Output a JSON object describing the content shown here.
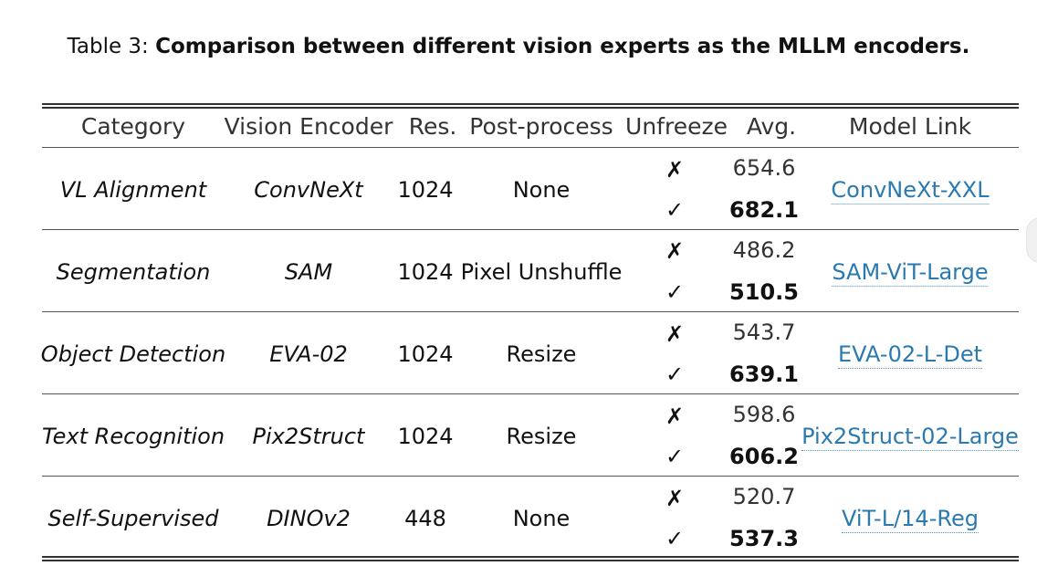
{
  "caption": {
    "prefix": "Table 3: ",
    "title": "Comparison between different vision experts as the MLLM encoders."
  },
  "headers": {
    "category": "Category",
    "encoder": "Vision Encoder",
    "res": "Res.",
    "post": "Post-process",
    "unfreeze": "Unfreeze",
    "avg": "Avg.",
    "link": "Model Link"
  },
  "rows": [
    {
      "category": "VL Alignment",
      "encoder": "ConvNeXt",
      "res": "1024",
      "post": "None",
      "frozen_mark": "✗",
      "frozen_avg": "654.6",
      "unfrozen_mark": "✓",
      "unfrozen_avg": "682.1",
      "link": "ConvNeXt-XXL"
    },
    {
      "category": "Segmentation",
      "encoder": "SAM",
      "res": "1024",
      "post": "Pixel Unshuffle",
      "frozen_mark": "✗",
      "frozen_avg": "486.2",
      "unfrozen_mark": "✓",
      "unfrozen_avg": "510.5",
      "link": "SAM-ViT-Large"
    },
    {
      "category": "Object Detection",
      "encoder": "EVA-02",
      "res": "1024",
      "post": "Resize",
      "frozen_mark": "✗",
      "frozen_avg": "543.7",
      "unfrozen_mark": "✓",
      "unfrozen_avg": "639.1",
      "link": "EVA-02-L-Det"
    },
    {
      "category": "Text Recognition",
      "encoder": "Pix2Struct",
      "res": "1024",
      "post": "Resize",
      "frozen_mark": "✗",
      "frozen_avg": "598.6",
      "unfrozen_mark": "✓",
      "unfrozen_avg": "606.2",
      "link": "Pix2Struct-02-Large"
    },
    {
      "category": "Self-Supervised",
      "encoder": "DINOv2",
      "res": "448",
      "post": "None",
      "frozen_mark": "✗",
      "frozen_avg": "520.7",
      "unfrozen_mark": "✓",
      "unfrozen_avg": "537.3",
      "link": "ViT-L/14-Reg"
    }
  ]
}
